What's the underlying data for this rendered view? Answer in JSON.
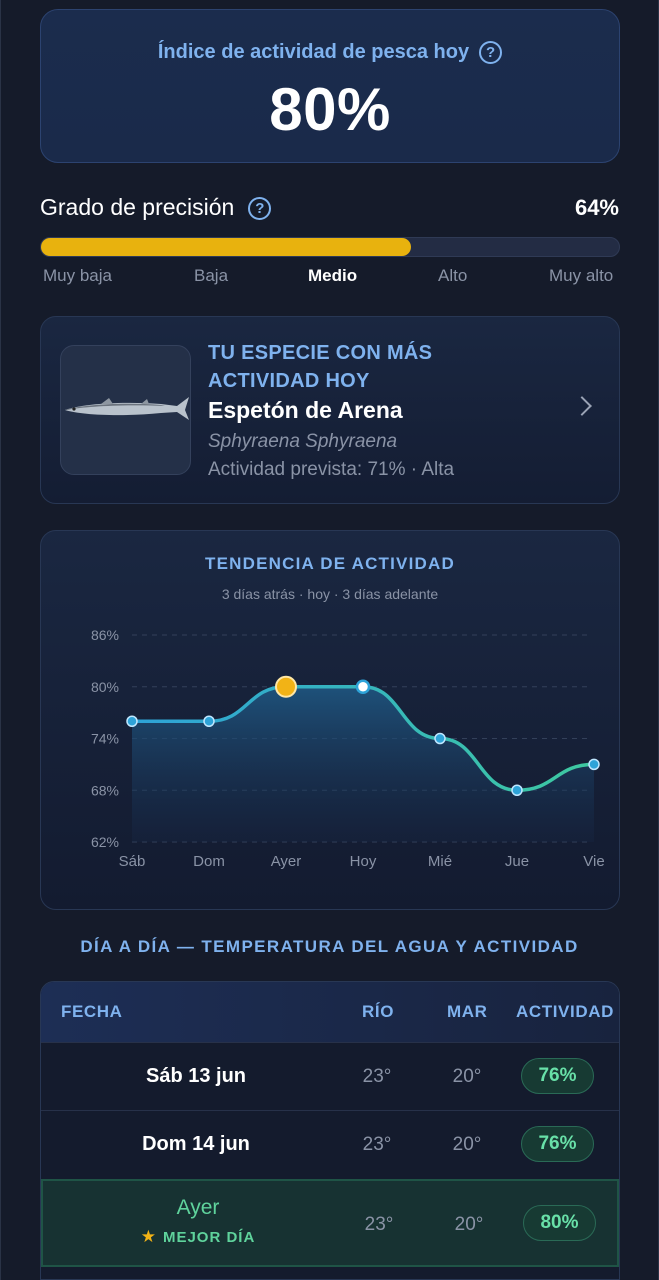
{
  "hero": {
    "title": "Índice de actividad de pesca hoy",
    "value": "80%"
  },
  "precision": {
    "title": "Grado de precisión",
    "value": "64%",
    "fill_fraction": 0.64,
    "scale": [
      "Muy baja",
      "Baja",
      "Medio",
      "Alto",
      "Muy alto"
    ],
    "active": "Medio"
  },
  "species": {
    "kicker_line1": "TU ESPECIE CON MÁS",
    "kicker_line2": "ACTIVIDAD HOY",
    "name": "Espetón de Arena",
    "latin": "Sphyraena Sphyraena",
    "activity": "Actividad prevista: 71% · Alta"
  },
  "trend": {
    "title": "TENDENCIA DE ACTIVIDAD",
    "subtitle": "3 días atrás · hoy · 3 días adelante"
  },
  "chart_data": {
    "type": "line",
    "title": "TENDENCIA DE ACTIVIDAD",
    "subtitle": "3 días atrás · hoy · 3 días adelante",
    "categories": [
      "Sáb",
      "Dom",
      "Ayer",
      "Hoy",
      "Mié",
      "Jue",
      "Vie"
    ],
    "values": [
      76,
      76,
      80,
      80,
      74,
      68,
      71
    ],
    "ylim": [
      62,
      86
    ],
    "yticks": [
      "86%",
      "80%",
      "74%",
      "68%",
      "62%"
    ],
    "ytick_values": [
      86,
      80,
      74,
      68,
      62
    ],
    "highlight": "Ayer",
    "grid": true
  },
  "days": {
    "heading": "DÍA A DÍA — TEMPERATURA DEL AGUA Y ACTIVIDAD",
    "headers": {
      "date": "FECHA",
      "river": "RÍO",
      "sea": "MAR",
      "activity": "ACTIVIDAD"
    },
    "rows": [
      {
        "date": "Sáb 13 jun",
        "river": "23°",
        "sea": "20°",
        "activity": "76%"
      },
      {
        "date": "Dom 14 jun",
        "river": "23°",
        "sea": "20°",
        "activity": "76%"
      },
      {
        "date": "Ayer",
        "river": "23°",
        "sea": "20°",
        "activity": "80%",
        "tag": "MEJOR DÍA"
      }
    ]
  },
  "colors": {
    "accent": "#7fb2ee",
    "bar": "#e8b20e",
    "line_start": "#2ea3d8",
    "line_end": "#3ec9a0",
    "best": "#5fd39c"
  }
}
